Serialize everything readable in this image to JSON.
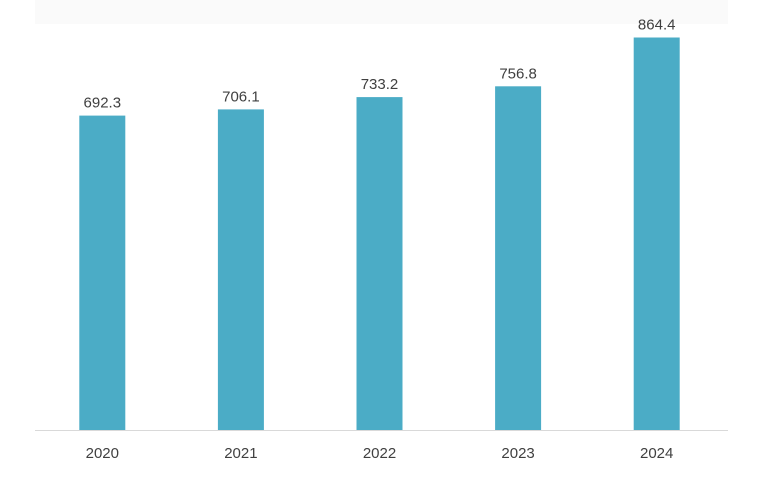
{
  "chart_data": {
    "type": "bar",
    "categories": [
      "2020",
      "2021",
      "2022",
      "2023",
      "2024"
    ],
    "values": [
      692.3,
      706.1,
      733.2,
      756.8,
      864.4
    ],
    "data_labels": [
      "692.3",
      "706.1",
      "733.2",
      "756.8",
      "864.4"
    ],
    "title": "",
    "xlabel": "",
    "ylabel": "",
    "ylim": [
      0,
      900
    ],
    "grid": false,
    "legend": "none",
    "bar_color": "#4BACC6",
    "axis_color": "#D9D9D9",
    "plot_background": "#FFFFFF",
    "header_strip_color": "#FAFAFA"
  }
}
